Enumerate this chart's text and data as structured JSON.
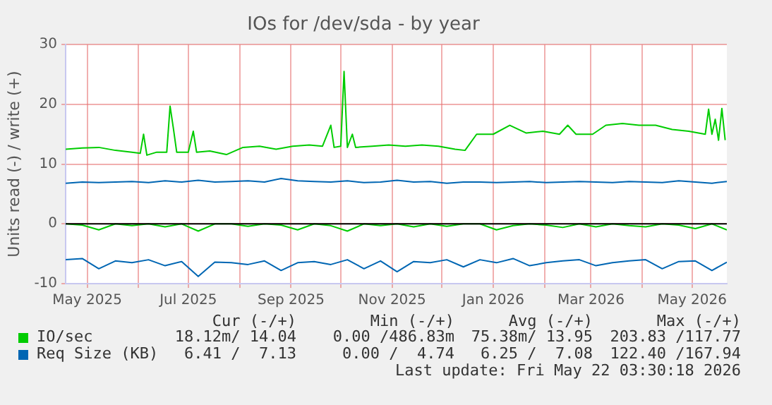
{
  "chart_data": {
    "type": "line",
    "title": "IOs for /dev/sda - by year",
    "ylabel": "Units read (-) / write (+)",
    "x": [
      "2025-04-18",
      "2025-04-28",
      "2025-05-08",
      "2025-05-18",
      "2025-05-28",
      "2025-06-07",
      "2025-06-17",
      "2025-06-27",
      "2025-07-07",
      "2025-07-17",
      "2025-07-27",
      "2025-08-06",
      "2025-08-16",
      "2025-08-26",
      "2025-09-05",
      "2025-09-15",
      "2025-09-25",
      "2025-10-05",
      "2025-10-15",
      "2025-10-25",
      "2025-11-04",
      "2025-11-14",
      "2025-11-24",
      "2025-12-04",
      "2025-12-14",
      "2025-12-24",
      "2026-01-03",
      "2026-01-13",
      "2026-01-23",
      "2026-02-02",
      "2026-02-12",
      "2026-02-22",
      "2026-03-04",
      "2026-03-14",
      "2026-03-24",
      "2026-04-03",
      "2026-04-13",
      "2026-04-23",
      "2026-05-03",
      "2026-05-13",
      "2026-05-22"
    ],
    "series": [
      {
        "name": "IO/sec",
        "color": "#00cc00",
        "x": [
          "2025-04-18",
          "2025-04-28",
          "2025-05-08",
          "2025-05-18",
          "2025-05-28",
          "2025-06-02",
          "2025-06-04",
          "2025-06-06",
          "2025-06-12",
          "2025-06-18",
          "2025-06-20",
          "2025-06-22",
          "2025-06-24",
          "2025-07-01",
          "2025-07-04",
          "2025-07-06",
          "2025-07-14",
          "2025-07-24",
          "2025-08-03",
          "2025-08-13",
          "2025-08-23",
          "2025-09-02",
          "2025-09-12",
          "2025-09-20",
          "2025-09-25",
          "2025-09-27",
          "2025-10-01",
          "2025-10-03",
          "2025-10-05",
          "2025-10-08",
          "2025-10-10",
          "2025-10-20",
          "2025-10-30",
          "2025-11-09",
          "2025-11-19",
          "2025-11-29",
          "2025-12-09",
          "2025-12-15",
          "2025-12-22",
          "2026-01-01",
          "2026-01-11",
          "2026-01-21",
          "2026-01-31",
          "2026-02-10",
          "2026-02-15",
          "2026-02-20",
          "2026-03-02",
          "2026-03-10",
          "2026-03-20",
          "2026-03-30",
          "2026-04-09",
          "2026-04-19",
          "2026-04-29",
          "2026-05-09",
          "2026-05-11",
          "2026-05-13",
          "2026-05-15",
          "2026-05-17",
          "2026-05-19",
          "2026-05-21"
        ],
        "values": [
          12.5,
          12.7,
          12.8,
          12.3,
          12.0,
          11.8,
          15.0,
          11.5,
          12.0,
          12.0,
          19.7,
          16.0,
          12.0,
          12.0,
          15.5,
          12.0,
          12.2,
          11.6,
          12.8,
          13.0,
          12.5,
          13.0,
          13.2,
          13.0,
          16.5,
          12.8,
          13.0,
          25.5,
          12.8,
          15.0,
          12.8,
          13.0,
          13.2,
          13.0,
          13.2,
          13.0,
          12.5,
          12.3,
          15.0,
          15.0,
          16.5,
          15.2,
          15.5,
          15.0,
          16.5,
          15.0,
          15.0,
          16.5,
          16.8,
          16.5,
          16.5,
          15.8,
          15.5,
          15.0,
          19.2,
          15.0,
          17.5,
          14.0,
          19.3,
          14.0
        ]
      },
      {
        "color": "#00cc00",
        "values": [
          0,
          -0.2,
          -1.0,
          0,
          -0.3,
          0,
          -0.5,
          0,
          -1.2,
          0,
          0,
          -0.4,
          0,
          -0.2,
          -1.0,
          0,
          -0.3,
          -1.2,
          0,
          -0.3,
          0,
          -0.5,
          0,
          -0.4,
          0,
          0,
          -1.0,
          -0.3,
          0,
          -0.2,
          -0.6,
          0,
          -0.5,
          0,
          -0.3,
          -0.5,
          0,
          -0.2,
          -0.8,
          0,
          -1.0
        ]
      },
      {
        "name": "Req Size (KB)",
        "color": "#0066b3",
        "values": [
          6.8,
          7.0,
          6.9,
          7.0,
          7.1,
          6.9,
          7.2,
          7.0,
          7.3,
          7.0,
          7.1,
          7.2,
          7.0,
          7.6,
          7.2,
          7.1,
          7.0,
          7.2,
          6.9,
          7.0,
          7.3,
          7.0,
          7.1,
          6.8,
          7.0,
          7.0,
          6.9,
          7.0,
          7.1,
          6.9,
          7.0,
          7.1,
          7.0,
          6.9,
          7.1,
          7.0,
          6.9,
          7.2,
          7.0,
          6.8,
          7.1
        ]
      },
      {
        "color": "#0066b3",
        "values": [
          -6.0,
          -5.8,
          -7.5,
          -6.2,
          -6.5,
          -6.0,
          -7.0,
          -6.3,
          -8.8,
          -6.4,
          -6.5,
          -6.8,
          -6.2,
          -7.8,
          -6.5,
          -6.3,
          -6.8,
          -6.0,
          -7.5,
          -6.2,
          -8.0,
          -6.3,
          -6.5,
          -6.0,
          -7.2,
          -6.0,
          -6.5,
          -5.8,
          -7.0,
          -6.5,
          -6.2,
          -6.0,
          -7.0,
          -6.5,
          -6.2,
          -6.0,
          -7.5,
          -6.3,
          -6.2,
          -7.8,
          -6.4
        ]
      }
    ],
    "xlim": [
      "2025-04-18",
      "2026-05-22"
    ],
    "xticks": [
      {
        "value": "2025-05-01",
        "label": "May 2025"
      },
      {
        "value": "2025-06-01",
        "label": null
      },
      {
        "value": "2025-07-01",
        "label": "Jul 2025"
      },
      {
        "value": "2025-08-01",
        "label": null
      },
      {
        "value": "2025-09-01",
        "label": "Sep 2025"
      },
      {
        "value": "2025-10-01",
        "label": null
      },
      {
        "value": "2025-11-01",
        "label": "Nov 2025"
      },
      {
        "value": "2025-12-01",
        "label": null
      },
      {
        "value": "2026-01-01",
        "label": "Jan 2026"
      },
      {
        "value": "2026-02-01",
        "label": null
      },
      {
        "value": "2026-03-01",
        "label": "Mar 2026"
      },
      {
        "value": "2026-04-01",
        "label": null
      },
      {
        "value": "2026-05-01",
        "label": "May 2026"
      }
    ],
    "ylim": [
      -10,
      30
    ],
    "yticks": [
      -10,
      0,
      10,
      20,
      30
    ],
    "ref_lines": [
      {
        "axis": "y",
        "value": 0,
        "color": "#000000"
      }
    ],
    "grid": true,
    "legend": "bottom",
    "marker": "none",
    "line_style": "solid",
    "annotations": [
      "Cur (-/+)",
      "Min (-/+)",
      "Avg (-/+)",
      "Max (-/+)",
      "18.12m/ 14.04",
      "0.00 /486.83m",
      "75.38m/ 13.95",
      "203.83 /117.77",
      "6.41 /  7.13",
      "0.00 /  4.74",
      "6.25 /  7.08",
      "122.40 /167.94",
      "Last update: Fri May 22 03:30:18 2026"
    ]
  }
}
